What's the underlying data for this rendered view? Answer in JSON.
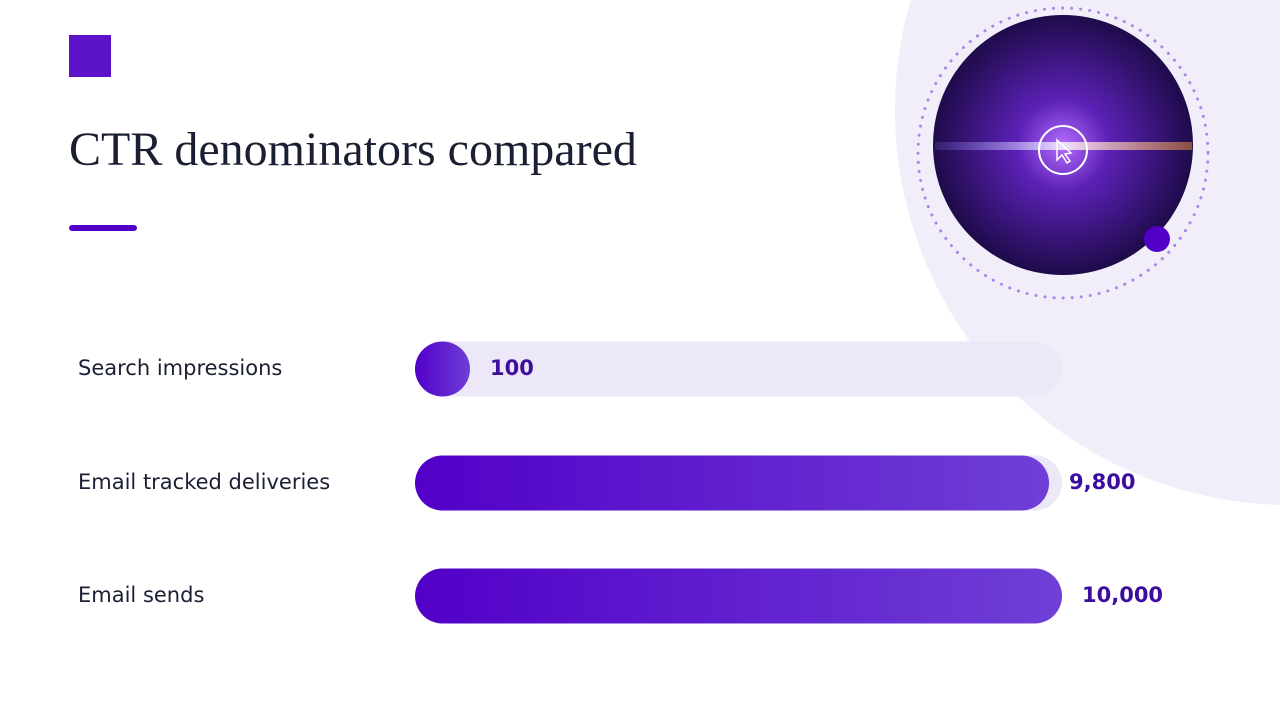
{
  "chart_data": {
    "type": "bar",
    "orientation": "horizontal",
    "title": "CTR denominators compared",
    "categories": [
      "Search impressions",
      "Email tracked deliveries",
      "Email sends"
    ],
    "values": [
      100,
      9800,
      10000
    ],
    "value_labels": [
      "100",
      "9,800",
      "10,000"
    ],
    "color": "#5200c8",
    "xlim": [
      0,
      10000
    ]
  }
}
